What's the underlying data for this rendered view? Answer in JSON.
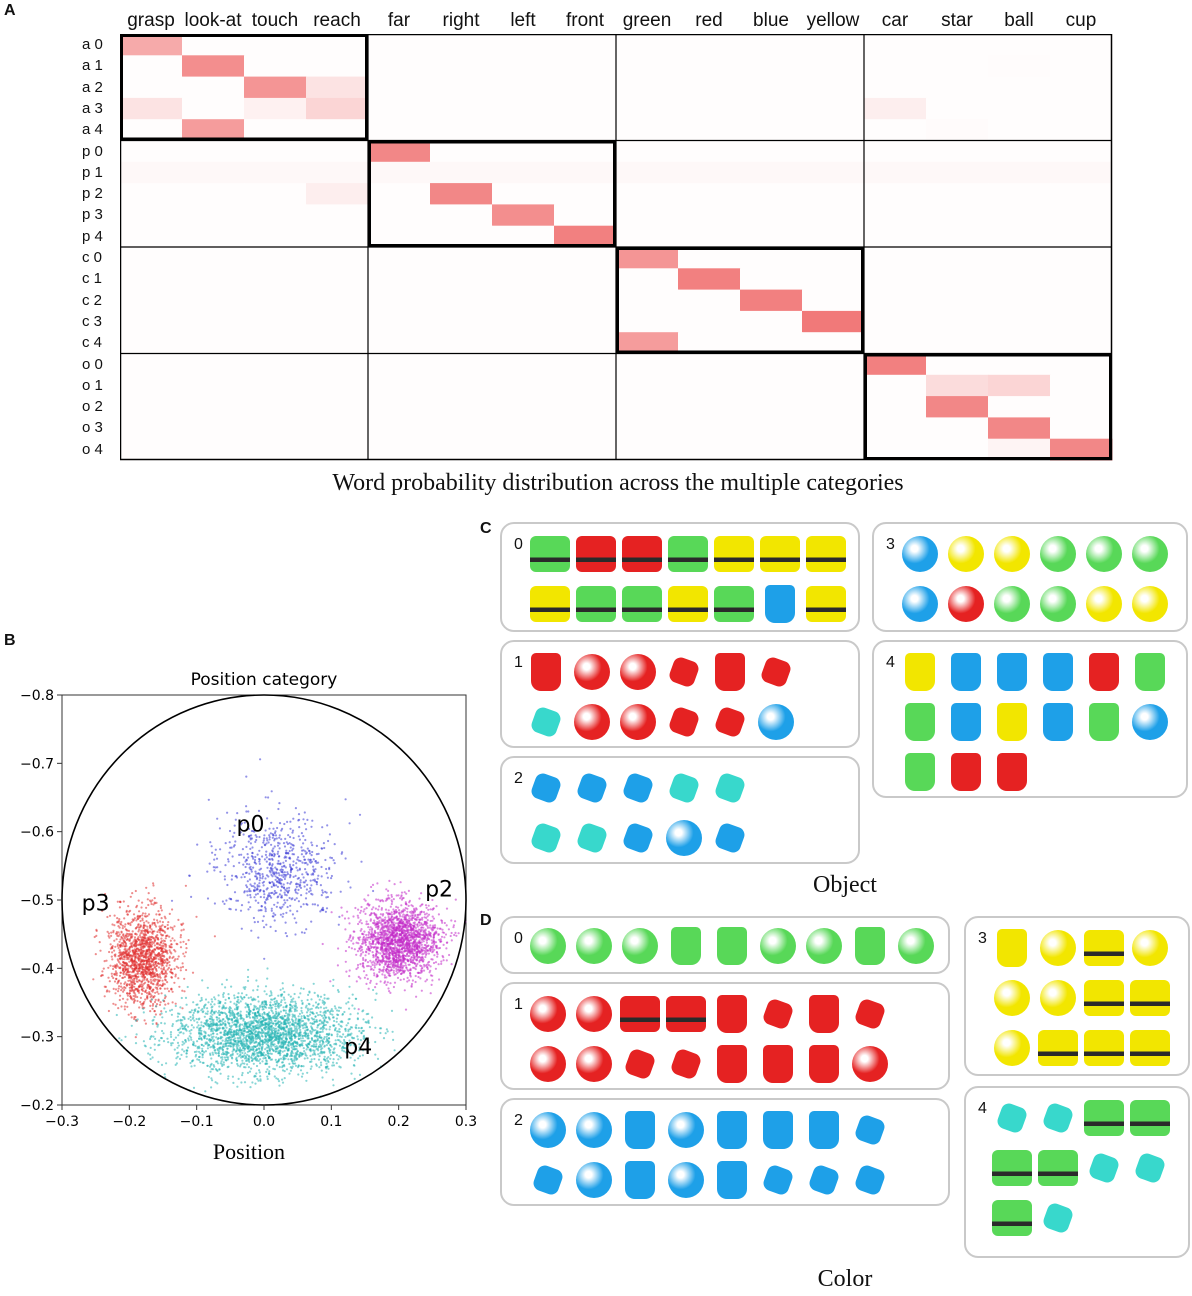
{
  "panels": {
    "a": {
      "letter": "A",
      "caption": "Word probability distribution across the multiple categories"
    },
    "b": {
      "letter": "B"
    },
    "c": {
      "letter": "C",
      "caption": "Object"
    },
    "d": {
      "letter": "D",
      "caption": "Color"
    }
  },
  "chart_data": [
    {
      "type": "heatmap",
      "title": "Word probability distribution across the multiple categories",
      "columns": [
        "grasp",
        "look-at",
        "touch",
        "reach",
        "far",
        "right",
        "left",
        "front",
        "green",
        "red",
        "blue",
        "yellow",
        "car",
        "star",
        "ball",
        "cup"
      ],
      "rows": [
        "a 0",
        "a 1",
        "a 2",
        "a 3",
        "a 4",
        "p 0",
        "p 1",
        "p 2",
        "p 3",
        "p 4",
        "c 0",
        "c 1",
        "c 2",
        "c 3",
        "c 4",
        "o 0",
        "o 1",
        "o 2",
        "o 3",
        "o 4"
      ],
      "values": [
        [
          0.6,
          0,
          0,
          0,
          0,
          0,
          0,
          0,
          0,
          0,
          0,
          0,
          0,
          0,
          0,
          0
        ],
        [
          0,
          0.8,
          0,
          0,
          0,
          0,
          0,
          0,
          0,
          0,
          0,
          0,
          0,
          0,
          0.02,
          0
        ],
        [
          0,
          0,
          0.75,
          0.2,
          0,
          0,
          0,
          0,
          0,
          0,
          0,
          0,
          0,
          0,
          0,
          0
        ],
        [
          0.2,
          0,
          0.1,
          0.3,
          0,
          0,
          0,
          0,
          0,
          0,
          0,
          0,
          0.12,
          0,
          0,
          0
        ],
        [
          0,
          0.7,
          0,
          0,
          0,
          0,
          0,
          0,
          0,
          0,
          0,
          0,
          0,
          0.03,
          0,
          0
        ],
        [
          0,
          0,
          0,
          0,
          0.85,
          0,
          0,
          0,
          0,
          0,
          0,
          0,
          0,
          0,
          0,
          0
        ],
        [
          0.05,
          0.05,
          0.05,
          0.05,
          0.05,
          0.05,
          0.05,
          0.05,
          0.05,
          0.05,
          0.05,
          0.05,
          0.05,
          0.05,
          0.05,
          0.05
        ],
        [
          0,
          0,
          0,
          0.12,
          0,
          0.85,
          0,
          0,
          0,
          0,
          0,
          0,
          0,
          0,
          0,
          0
        ],
        [
          0,
          0,
          0,
          0,
          0,
          0,
          0.8,
          0,
          0,
          0,
          0,
          0,
          0,
          0,
          0,
          0
        ],
        [
          0,
          0,
          0,
          0,
          0,
          0,
          0,
          0.9,
          0,
          0,
          0,
          0,
          0,
          0,
          0,
          0
        ],
        [
          0,
          0,
          0,
          0,
          0,
          0,
          0,
          0,
          0.75,
          0,
          0,
          0,
          0,
          0,
          0,
          0
        ],
        [
          0,
          0,
          0,
          0,
          0,
          0,
          0,
          0,
          0,
          0.9,
          0,
          0,
          0,
          0,
          0,
          0
        ],
        [
          0,
          0,
          0,
          0,
          0,
          0,
          0,
          0,
          0,
          0,
          0.9,
          0,
          0,
          0,
          0,
          0
        ],
        [
          0,
          0,
          0,
          0,
          0,
          0,
          0,
          0,
          0,
          0,
          0,
          0.95,
          0,
          0,
          0,
          0
        ],
        [
          0,
          0,
          0,
          0,
          0,
          0,
          0,
          0,
          0.7,
          0,
          0,
          0,
          0,
          0,
          0,
          0
        ],
        [
          0,
          0,
          0,
          0,
          0,
          0,
          0,
          0,
          0,
          0,
          0,
          0,
          0.9,
          0,
          0,
          0
        ],
        [
          0,
          0,
          0,
          0,
          0,
          0,
          0,
          0,
          0,
          0,
          0,
          0,
          0,
          0.25,
          0.3,
          0
        ],
        [
          0,
          0,
          0,
          0,
          0,
          0,
          0,
          0,
          0,
          0,
          0,
          0,
          0,
          0.85,
          0,
          0
        ],
        [
          0,
          0,
          0,
          0,
          0,
          0,
          0,
          0,
          0,
          0,
          0,
          0,
          0,
          0,
          0.85,
          0
        ],
        [
          0,
          0,
          0,
          0,
          0,
          0,
          0,
          0,
          0,
          0,
          0,
          0,
          0,
          0,
          0.08,
          0.85
        ]
      ],
      "group_size": 4
    },
    {
      "type": "scatter",
      "title": "Position category",
      "xlabel": "Position",
      "ylabel": "",
      "xlim": [
        -0.3,
        0.3
      ],
      "ylim": [
        -0.2,
        -0.8
      ],
      "x_ticks": [
        "-0.3",
        "-0.2",
        "-0.1",
        "0.0",
        "0.1",
        "0.2",
        "0.3"
      ],
      "y_ticks": [
        "-0.8",
        "-0.7",
        "-0.6",
        "-0.5",
        "-0.4",
        "-0.3",
        "-0.2"
      ],
      "y_inverted": true,
      "boundary": {
        "shape": "circle",
        "center": [
          0.0,
          -0.5
        ],
        "radius": 0.3
      },
      "series": [
        {
          "name": "p0",
          "label": "p0",
          "color": "#3b3bd6",
          "center": [
            0.02,
            -0.545
          ],
          "spread": [
            0.045,
            0.04
          ],
          "count": 700,
          "label_at": [
            -0.02,
            -0.6
          ]
        },
        {
          "name": "p2",
          "label": "p2",
          "color": "#c22bc9",
          "center": [
            0.2,
            -0.44
          ],
          "spread": [
            0.03,
            0.028
          ],
          "count": 1800,
          "label_at": [
            0.26,
            -0.505
          ]
        },
        {
          "name": "p3",
          "label": "p3",
          "color": "#e03030",
          "center": [
            -0.18,
            -0.415
          ],
          "spread": [
            0.025,
            0.035
          ],
          "count": 1400,
          "label_at": [
            -0.25,
            -0.485
          ]
        },
        {
          "name": "p4",
          "label": "p4",
          "color": "#26b5b5",
          "center": [
            0.0,
            -0.305
          ],
          "spread": [
            0.07,
            0.028
          ],
          "count": 2600,
          "label_at": [
            0.14,
            -0.275
          ]
        }
      ]
    }
  ],
  "object_groups": [
    {
      "id": "0",
      "items": [
        "toy:green",
        "toy:red",
        "toy:red",
        "toy:green",
        "toy:yellow",
        "toy:yellow",
        "toy:yellow",
        "toy:yellow",
        "toy:green",
        "toy:green",
        "toy:yellow",
        "toy:green",
        "cup:blue",
        "toy:yellow"
      ]
    },
    {
      "id": "1",
      "items": [
        "cup:red",
        "ball:red",
        "ball:red",
        "star:red",
        "cup:red",
        "star:red",
        "star:cyan",
        "ball:red",
        "ball:red",
        "star:red",
        "star:red",
        "ball:blue"
      ]
    },
    {
      "id": "2",
      "items": [
        "star:blue",
        "star:blue",
        "star:blue",
        "star:cyan",
        "star:cyan",
        "star:cyan",
        "star:cyan",
        "star:blue",
        "ball:blue",
        "star:blue"
      ]
    },
    {
      "id": "3",
      "items": [
        "ball:blue",
        "ball:yellow",
        "ball:yellow",
        "ball:green",
        "ball:green",
        "ball:green",
        "ball:blue",
        "ball:red",
        "ball:green",
        "ball:green",
        "ball:yellow",
        "ball:yellow"
      ]
    },
    {
      "id": "4",
      "items": [
        "cup:yellow",
        "cup:blue",
        "cup:blue",
        "cup:blue",
        "cup:red",
        "cup:green",
        "cup:green",
        "cup:blue",
        "cup:yellow",
        "cup:blue",
        "cup:green",
        "ball:blue",
        "cup:green",
        "cup:red",
        "cup:red"
      ]
    }
  ],
  "color_groups": [
    {
      "id": "0",
      "items": [
        "ball:green",
        "ball:green",
        "ball:green",
        "cup:green",
        "cup:green",
        "ball:green",
        "ball:green",
        "cup:green",
        "ball:green"
      ]
    },
    {
      "id": "1",
      "items": [
        "ball:red",
        "ball:red",
        "toy:red",
        "toy:red",
        "cup:red",
        "star:red",
        "cup:red",
        "star:red",
        "ball:red",
        "ball:red",
        "star:red",
        "star:red",
        "cup:red",
        "cup:red",
        "cup:red",
        "ball:red"
      ]
    },
    {
      "id": "2",
      "items": [
        "ball:blue",
        "ball:blue",
        "cup:blue",
        "ball:blue",
        "cup:blue",
        "cup:blue",
        "cup:blue",
        "star:blue",
        "star:blue",
        "ball:blue",
        "cup:blue",
        "ball:blue",
        "cup:blue",
        "star:blue",
        "star:blue",
        "star:blue"
      ]
    },
    {
      "id": "3",
      "items": [
        "cup:yellow",
        "ball:yellow",
        "toy:yellow",
        "ball:yellow",
        "ball:yellow",
        "ball:yellow",
        "toy:yellow",
        "toy:yellow",
        "ball:yellow",
        "toy:yellow",
        "toy:yellow",
        "toy:yellow"
      ]
    },
    {
      "id": "4",
      "items": [
        "star:cyan",
        "star:cyan",
        "toy:green",
        "toy:green",
        "toy:green",
        "toy:green",
        "star:cyan",
        "star:cyan",
        "toy:green",
        "star:cyan"
      ]
    }
  ],
  "palette": {
    "red": "#e52222",
    "green": "#58d858",
    "blue": "#1ea0e8",
    "yellow": "#f2e600",
    "cyan": "#38d8cc",
    "heat_high": "#f07272",
    "heat_low": "#ffffff",
    "frame": "#000000"
  }
}
